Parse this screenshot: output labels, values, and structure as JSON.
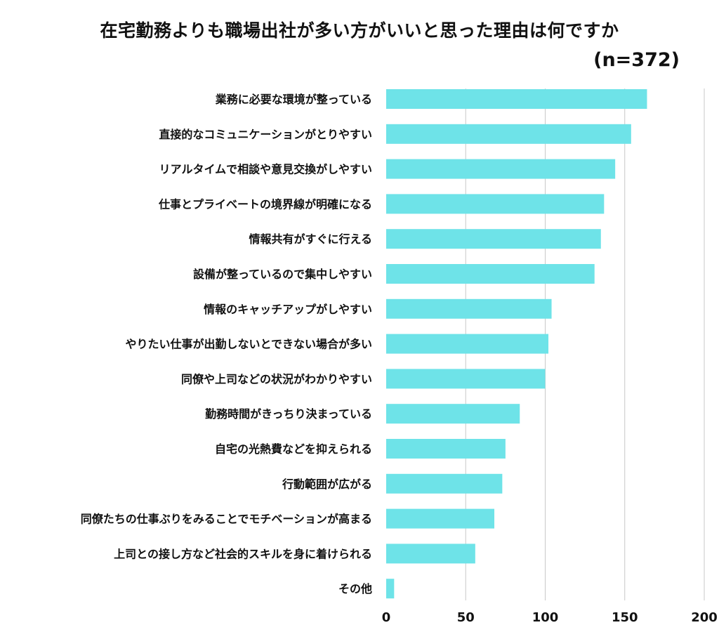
{
  "chart_data": {
    "type": "bar",
    "orientation": "horizontal",
    "title": "在宅勤務よりも職場出社が多い方がいいと思った理由は何ですか",
    "subtitle": "(n=372)",
    "categories": [
      "業務に必要な環境が整っている",
      "直接的なコミュニケーションがとりやすい",
      "リアルタイムで相談や意見交換がしやすい",
      "仕事とプライベートの境界線が明確になる",
      "情報共有がすぐに行える",
      "設備が整っているので集中しやすい",
      "情報のキャッチアップがしやすい",
      "やりたい仕事が出勤しないとできない場合が多い",
      "同僚や上司などの状況がわかりやすい",
      "勤務時間がきっちり決まっている",
      "自宅の光熱費などを抑えられる",
      "行動範囲が広がる",
      "同僚たちの仕事ぶりをみることでモチベーションが高まる",
      "上司との接し方など社会的スキルを身に着けられる",
      "その他"
    ],
    "values": [
      164,
      154,
      144,
      137,
      135,
      131,
      104,
      102,
      100,
      84,
      75,
      73,
      68,
      56,
      5
    ],
    "xlim": [
      0,
      200
    ],
    "xticks": [
      "0",
      "50",
      "100",
      "150",
      "200"
    ],
    "grid": true,
    "bar_color": "#6ee3e8",
    "grid_color": "#c8c8c8"
  }
}
